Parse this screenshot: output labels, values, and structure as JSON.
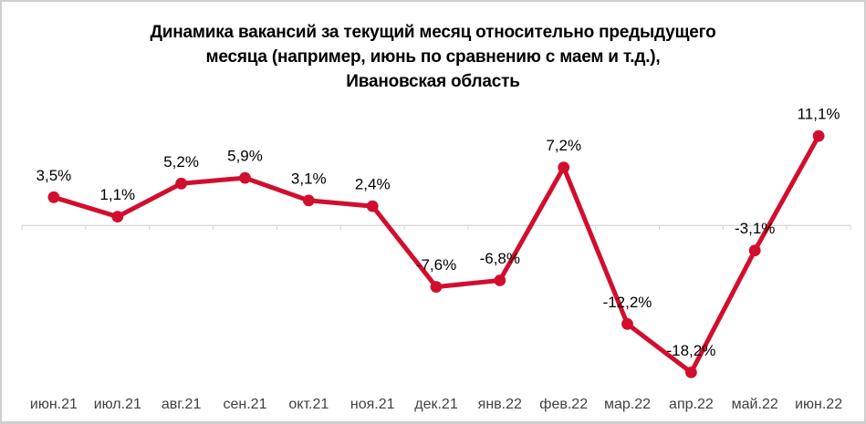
{
  "chart_data": {
    "type": "line",
    "title": "Динамика вакансий за текущий месяц относительно предыдущего месяца (например, июнь по сравнению с маем и т.д.), Ивановская область",
    "title_lines": [
      "Динамика вакансий за текущий месяц относительно предыдущего",
      "месяца (например, июнь по сравнению с маем и т.д.),",
      "Ивановская область"
    ],
    "categories": [
      "июн.21",
      "июл.21",
      "авг.21",
      "сен.21",
      "окт.21",
      "ноя.21",
      "дек.21",
      "янв.22",
      "фев.22",
      "мар.22",
      "апр.22",
      "май.22",
      "июн.22"
    ],
    "values": [
      3.5,
      1.1,
      5.2,
      5.9,
      3.1,
      2.4,
      -7.6,
      -6.8,
      7.2,
      -12.2,
      -18.2,
      -3.1,
      11.1
    ],
    "value_labels": [
      "3,5%",
      "1,1%",
      "5,2%",
      "5,9%",
      "3,1%",
      "2,4%",
      "-7,6%",
      "-6,8%",
      "7,2%",
      "-12,2%",
      "-18,2%",
      "-3,1%",
      "11,1%"
    ],
    "xlabel": "",
    "ylabel": "",
    "ylim": [
      -20,
      13
    ],
    "y_axis_visible": false,
    "gridlines": "zero-baseline-only",
    "legend": "none",
    "colors": {
      "line": "#D20E2E",
      "marker": "#D20E2E",
      "axis": "#D9D9D9",
      "value_label": "#000000",
      "category_label": "#404040",
      "title": "#000000",
      "background": "#FFFFFF",
      "frame_border": "#CFCFCF"
    }
  }
}
